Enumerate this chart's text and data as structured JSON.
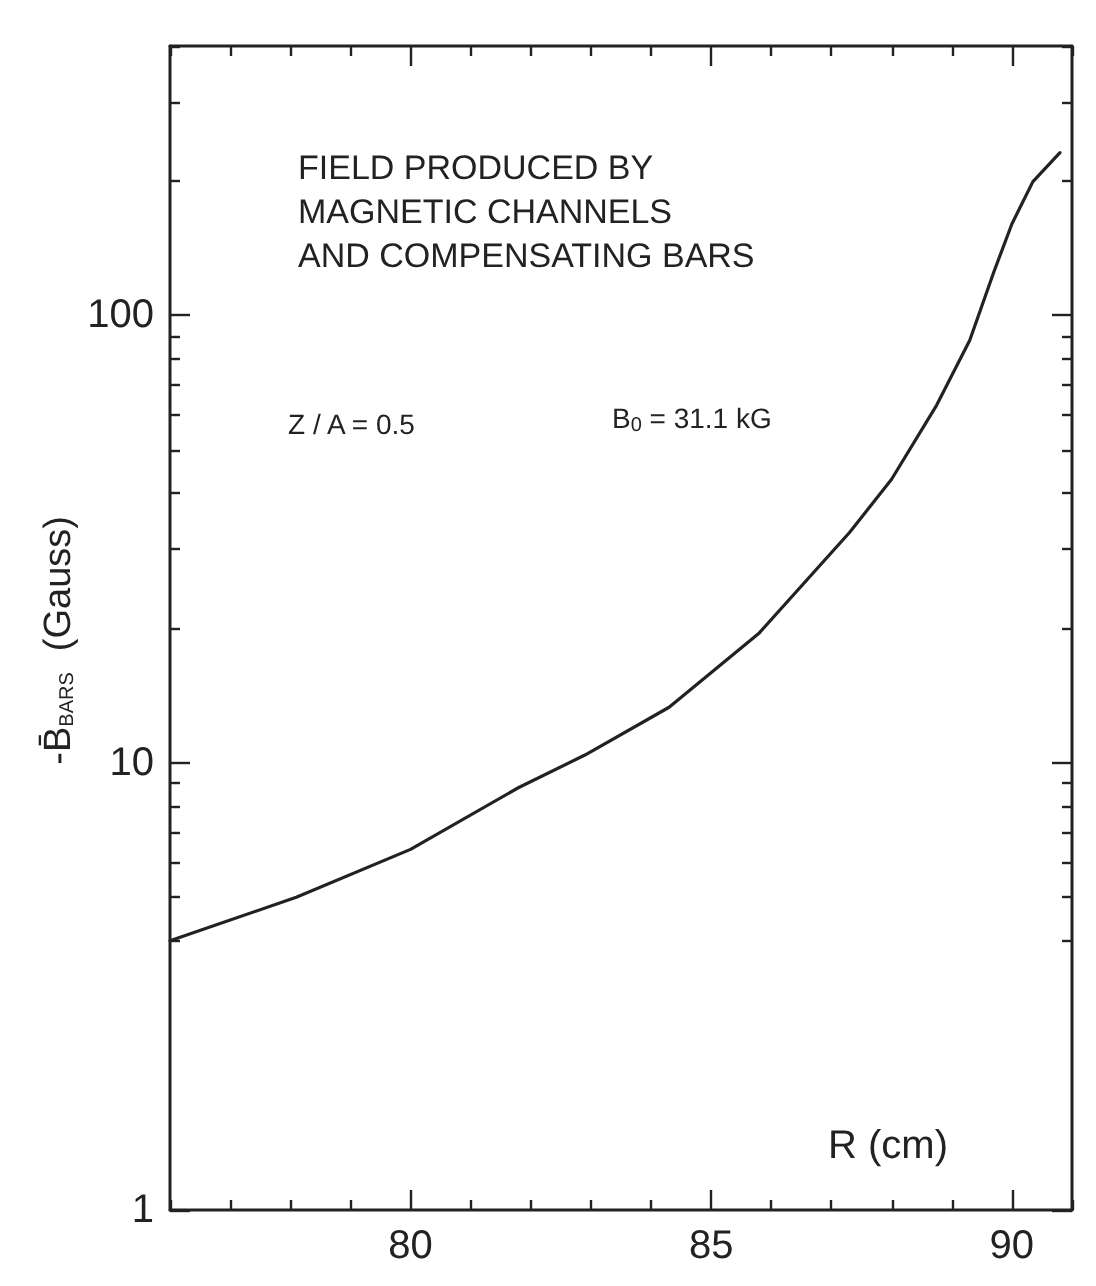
{
  "chart_data": {
    "type": "line",
    "title": "FIELD PRODUCED BY\nMAGNETIC CHANNELS\nAND COMPENSATING BARS",
    "xlabel": "R (cm)",
    "ylabel": "-B̄$_{BARS}$  (Gauss)",
    "annotations": [
      "Z / A = 0.5",
      "B$_{0}$ = 31.1 kG"
    ],
    "log": "y",
    "grid": false,
    "marker": "none",
    "line_style": "solid",
    "xlim": [
      76,
      91
    ],
    "xticks": [
      {
        "value": 76,
        "label": null
      },
      {
        "value": 77,
        "label": null
      },
      {
        "value": 78,
        "label": null
      },
      {
        "value": 79,
        "label": null
      },
      80,
      {
        "value": 81,
        "label": null
      },
      {
        "value": 82,
        "label": null
      },
      {
        "value": 83,
        "label": null
      },
      {
        "value": 84,
        "label": null
      },
      85,
      {
        "value": 86,
        "label": null
      },
      {
        "value": 87,
        "label": null
      },
      {
        "value": 88,
        "label": null
      },
      {
        "value": 89,
        "label": null
      },
      90,
      {
        "value": 91,
        "label": null
      }
    ],
    "ylim": [
      1,
      400
    ],
    "yticks": [
      1,
      {
        "value": 4,
        "label": null
      },
      {
        "value": 5,
        "label": null
      },
      {
        "value": 6,
        "label": null
      },
      {
        "value": 7,
        "label": null
      },
      {
        "value": 8,
        "label": null
      },
      {
        "value": 9,
        "label": null
      },
      10,
      {
        "value": 20,
        "label": null
      },
      {
        "value": 30,
        "label": null
      },
      {
        "value": 40,
        "label": null
      },
      {
        "value": 50,
        "label": null
      },
      {
        "value": 60,
        "label": null
      },
      {
        "value": 70,
        "label": null
      },
      {
        "value": 80,
        "label": null
      },
      {
        "value": 90,
        "label": null
      },
      100,
      {
        "value": 200,
        "label": null
      },
      {
        "value": 300,
        "label": null
      },
      {
        "value": 400,
        "label": null
      }
    ],
    "series": [
      {
        "color": "#222222",
        "x": [
          76,
          78.1,
          80,
          81.8,
          82.9,
          84.3,
          85.8,
          87.3,
          88,
          88.75,
          89.3,
          89.7,
          90,
          90.35,
          90.8
        ],
        "values": [
          4,
          5,
          6.4,
          8.8,
          10.4,
          13.3,
          19.5,
          32.7,
          43,
          63,
          88,
          125,
          160,
          199,
          231
        ]
      }
    ]
  }
}
